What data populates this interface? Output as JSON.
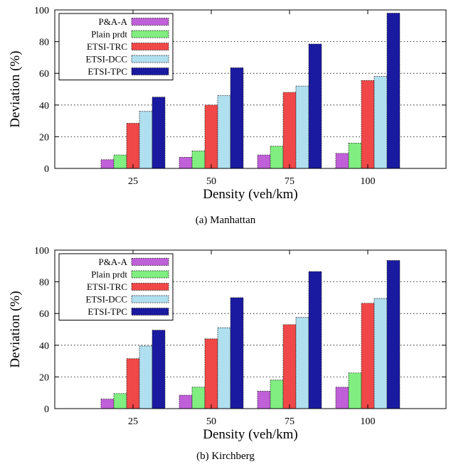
{
  "chart_data": [
    {
      "type": "bar",
      "caption": "(a)  Manhattan",
      "categories": [
        "25",
        "50",
        "75",
        "100"
      ],
      "xlabel": "Density (veh/km)",
      "ylabel": "Deviation (%)",
      "ylim": [
        0,
        100
      ],
      "yticks": [
        0,
        20,
        40,
        60,
        80,
        100
      ],
      "grid": true,
      "legend_position": "top-left",
      "series": [
        {
          "name": "P&A-A",
          "color": "#c060d8",
          "values": [
            5.5,
            7,
            8.5,
            9.5
          ]
        },
        {
          "name": "Plain prdt",
          "color": "#80ee80",
          "values": [
            8.5,
            11,
            14,
            16
          ]
        },
        {
          "name": "ETSI-TRC",
          "color": "#f04848",
          "values": [
            28.5,
            40,
            48,
            55.5
          ]
        },
        {
          "name": "ETSI-DCC",
          "color": "#b0e0f0",
          "values": [
            36,
            46,
            52,
            58
          ]
        },
        {
          "name": "ETSI-TPC",
          "color": "#1a1aa0",
          "values": [
            45,
            63.5,
            78.5,
            98
          ]
        }
      ]
    },
    {
      "type": "bar",
      "caption": "(b)  Kirchberg",
      "categories": [
        "25",
        "50",
        "75",
        "100"
      ],
      "xlabel": "Density (veh/km)",
      "ylabel": "Deviation (%)",
      "ylim": [
        0,
        100
      ],
      "yticks": [
        0,
        20,
        40,
        60,
        80,
        100
      ],
      "grid": true,
      "legend_position": "top-left",
      "series": [
        {
          "name": "P&A-A",
          "color": "#c060d8",
          "values": [
            6,
            8.5,
            11,
            13.5
          ]
        },
        {
          "name": "Plain prdt",
          "color": "#80ee80",
          "values": [
            9.5,
            13.5,
            18,
            22.5
          ]
        },
        {
          "name": "ETSI-TRC",
          "color": "#f04848",
          "values": [
            31.5,
            44,
            53,
            66.5
          ]
        },
        {
          "name": "ETSI-DCC",
          "color": "#b0e0f0",
          "values": [
            39.5,
            51,
            57.5,
            69.5
          ]
        },
        {
          "name": "ETSI-TPC",
          "color": "#1a1aa0",
          "values": [
            49.5,
            70,
            86.5,
            93.5
          ]
        }
      ]
    }
  ]
}
